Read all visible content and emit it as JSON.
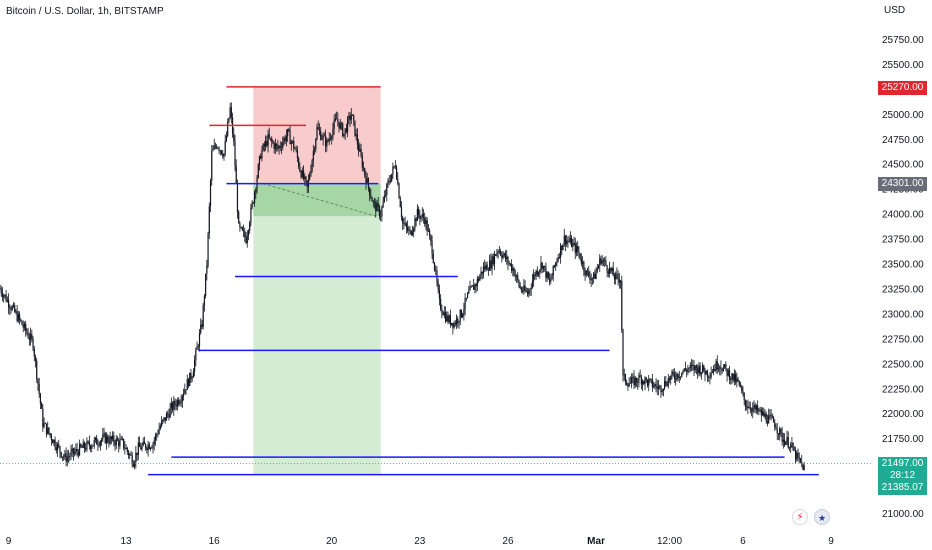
{
  "header": {
    "title": "Bitcoin / U.S. Dollar, 1h, BITSTAMP",
    "currency": "USD"
  },
  "badges": {
    "top_price": "25270.00",
    "mid_price": "24301.00",
    "last_price": "21497.00",
    "countdown": "28:12",
    "low_price": "21385.07"
  },
  "icons": {
    "bolt": "lightning-icon",
    "flag": "us-flag-icon"
  },
  "colors": {
    "up": "#131722",
    "down": "#131722",
    "stop_zone": "#f8cccc",
    "target_zone": "#d4ebd4",
    "entry_zone": "#a6d6a6",
    "line_blue": "#1a1aff",
    "line_red": "#e0262f",
    "last_price": "#22ab94"
  },
  "chart_data": {
    "type": "candlestick",
    "title": "Bitcoin / U.S. Dollar, 1h, BITSTAMP",
    "ylabel": "USD",
    "ylim": [
      20900,
      25900
    ],
    "y_ticks": [
      21000,
      21250,
      21500,
      21750,
      22000,
      22250,
      22500,
      22750,
      23000,
      23250,
      23500,
      23750,
      24000,
      24250,
      24500,
      24750,
      25000,
      25250,
      25500,
      25750
    ],
    "y_tick_labels": [
      "21000.00",
      "21250.00",
      "21500.00",
      "21750.00",
      "22000.00",
      "22250.00",
      "22500.00",
      "22750.00",
      "23000.00",
      "23250.00",
      "23500.00",
      "23750.00",
      "24000.00",
      "24250.00",
      "24500.00",
      "24750.00",
      "25000.00",
      "25250.00",
      "25500.00",
      "25750.00"
    ],
    "x_ticks": [
      {
        "label": "9",
        "t": 2
      },
      {
        "label": "13",
        "t": 98
      },
      {
        "label": "16",
        "t": 170
      },
      {
        "label": "20",
        "t": 266
      },
      {
        "label": "23",
        "t": 338
      },
      {
        "label": "26",
        "t": 410
      },
      {
        "label": "Mar",
        "t": 482
      },
      {
        "label": "12:00",
        "t": 542
      },
      {
        "label": "6",
        "t": 602
      },
      {
        "label": "9",
        "t": 674
      }
    ],
    "x_range": [
      -5,
      687
    ],
    "price_path": [
      [
        -5,
        23250
      ],
      [
        10,
        22950
      ],
      [
        22,
        22700
      ],
      [
        30,
        21900
      ],
      [
        40,
        21700
      ],
      [
        48,
        21550
      ],
      [
        62,
        21650
      ],
      [
        80,
        21750
      ],
      [
        95,
        21700
      ],
      [
        104,
        21520
      ],
      [
        108,
        21650
      ],
      [
        120,
        21700
      ],
      [
        125,
        21850
      ],
      [
        135,
        22050
      ],
      [
        142,
        22150
      ],
      [
        152,
        22400
      ],
      [
        160,
        22900
      ],
      [
        164,
        23500
      ],
      [
        168,
        24600
      ],
      [
        172,
        24700
      ],
      [
        178,
        24600
      ],
      [
        183,
        25050
      ],
      [
        186,
        24700
      ],
      [
        190,
        23850
      ],
      [
        196,
        23750
      ],
      [
        202,
        24150
      ],
      [
        208,
        24600
      ],
      [
        214,
        24750
      ],
      [
        222,
        24650
      ],
      [
        230,
        24800
      ],
      [
        236,
        24650
      ],
      [
        240,
        24450
      ],
      [
        246,
        24250
      ],
      [
        254,
        24850
      ],
      [
        262,
        24700
      ],
      [
        270,
        24950
      ],
      [
        276,
        24800
      ],
      [
        282,
        25000
      ],
      [
        288,
        24650
      ],
      [
        294,
        24350
      ],
      [
        300,
        24100
      ],
      [
        306,
        24000
      ],
      [
        312,
        24300
      ],
      [
        318,
        24500
      ],
      [
        324,
        23900
      ],
      [
        330,
        23800
      ],
      [
        336,
        24000
      ],
      [
        342,
        23950
      ],
      [
        348,
        23650
      ],
      [
        354,
        23100
      ],
      [
        360,
        22950
      ],
      [
        366,
        22900
      ],
      [
        372,
        23000
      ],
      [
        378,
        23200
      ],
      [
        384,
        23300
      ],
      [
        390,
        23450
      ],
      [
        396,
        23500
      ],
      [
        402,
        23650
      ],
      [
        408,
        23550
      ],
      [
        414,
        23450
      ],
      [
        420,
        23250
      ],
      [
        426,
        23200
      ],
      [
        432,
        23400
      ],
      [
        438,
        23500
      ],
      [
        444,
        23300
      ],
      [
        450,
        23550
      ],
      [
        456,
        23750
      ],
      [
        462,
        23700
      ],
      [
        468,
        23600
      ],
      [
        474,
        23400
      ],
      [
        480,
        23350
      ],
      [
        486,
        23550
      ],
      [
        492,
        23450
      ],
      [
        498,
        23350
      ],
      [
        502,
        23350
      ],
      [
        504,
        22350
      ],
      [
        510,
        22300
      ],
      [
        518,
        22350
      ],
      [
        526,
        22300
      ],
      [
        534,
        22250
      ],
      [
        542,
        22350
      ],
      [
        550,
        22400
      ],
      [
        558,
        22450
      ],
      [
        566,
        22450
      ],
      [
        574,
        22400
      ],
      [
        582,
        22500
      ],
      [
        590,
        22400
      ],
      [
        598,
        22300
      ],
      [
        604,
        22100
      ],
      [
        610,
        22050
      ],
      [
        616,
        22000
      ],
      [
        622,
        21950
      ],
      [
        628,
        21900
      ],
      [
        634,
        21750
      ],
      [
        640,
        21700
      ],
      [
        646,
        21550
      ],
      [
        652,
        21450
      ]
    ],
    "positions": [
      {
        "name": "",
        "t_start": 202,
        "t_end": 306,
        "entry": 24301.0,
        "stop": 25270.0,
        "target": 21385.07,
        "filled_to": 23975
      }
    ],
    "horizontal_levels": [
      {
        "price": 25270,
        "t_start": 180,
        "t_end": 306,
        "color": "red"
      },
      {
        "price": 24885,
        "t_start": 166,
        "t_end": 245,
        "color": "red"
      },
      {
        "price": 24301,
        "t_start": 180,
        "t_end": 304,
        "color": "blue"
      },
      {
        "price": 23370,
        "t_start": 187,
        "t_end": 369,
        "color": "blue"
      },
      {
        "price": 22630,
        "t_start": 157,
        "t_end": 493,
        "color": "blue"
      },
      {
        "price": 21560,
        "t_start": 135,
        "t_end": 636,
        "color": "blue"
      },
      {
        "price": 21385.07,
        "t_start": 116,
        "t_end": 664,
        "color": "blue"
      }
    ],
    "last_price": 21497.0,
    "last_price_low": 21385.07
  }
}
